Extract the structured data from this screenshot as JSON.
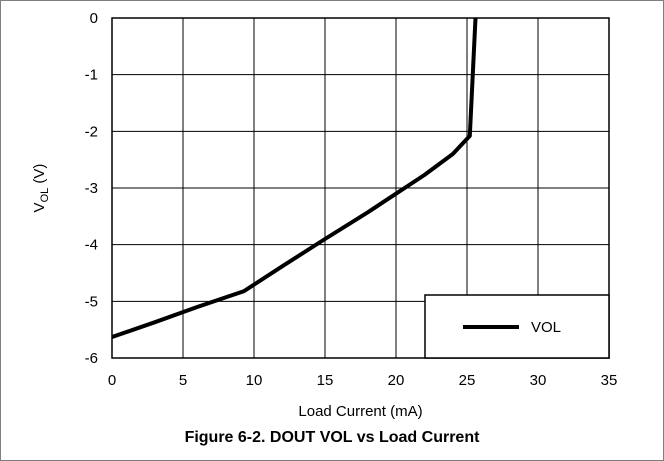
{
  "figure": {
    "caption": "Figure 6-2. DOUT VOL vs Load Current"
  },
  "chart_data": {
    "type": "line",
    "xlabel": "Load Current (mA)",
    "ylabel_main": "V",
    "ylabel_sub": "OL",
    "ylabel_unit": " (V)",
    "xlim": [
      0,
      35
    ],
    "ylim": [
      -6,
      0
    ],
    "xticks": [
      "0",
      "5",
      "10",
      "15",
      "20",
      "25",
      "30",
      "35"
    ],
    "yticks": [
      "0",
      "-1",
      "-2",
      "-3",
      "-4",
      "-5",
      "-6"
    ],
    "grid": true,
    "legend_position": "bottom-right",
    "series": [
      {
        "name": "VOL",
        "color": "#000000",
        "x": [
          0,
          3,
          6,
          9.3,
          12,
          15,
          18,
          20,
          22,
          24,
          25.2,
          25.6
        ],
        "y": [
          -5.63,
          -5.37,
          -5.1,
          -4.82,
          -4.38,
          -3.9,
          -3.43,
          -3.1,
          -2.77,
          -2.4,
          -2.08,
          0
        ]
      }
    ]
  }
}
